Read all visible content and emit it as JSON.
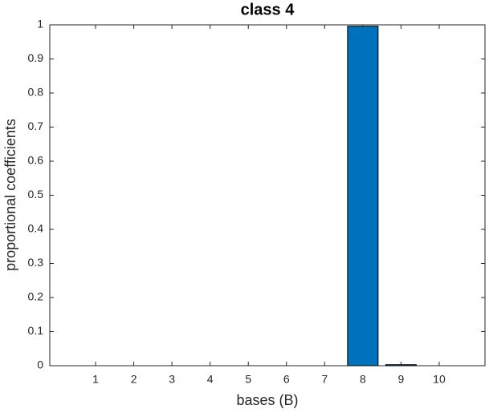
{
  "chart_data": {
    "type": "bar",
    "title": "class 4",
    "xlabel": "bases (B)",
    "ylabel": "proportional coefficients",
    "x": [
      1,
      2,
      3,
      4,
      5,
      6,
      7,
      8,
      9,
      10
    ],
    "values": [
      0,
      0,
      0,
      0,
      0,
      0,
      0,
      0.996,
      0.003,
      0
    ],
    "color": "#0072bd",
    "xlim": [
      -0.2,
      11.2
    ],
    "xticks": [
      1,
      2,
      3,
      4,
      5,
      6,
      7,
      8,
      9,
      10
    ],
    "ylim": [
      0,
      1
    ],
    "yticks": [
      0,
      0.1,
      0.2,
      0.3,
      0.4,
      0.5,
      0.6,
      0.7,
      0.8,
      0.9,
      1
    ],
    "grid": false
  }
}
